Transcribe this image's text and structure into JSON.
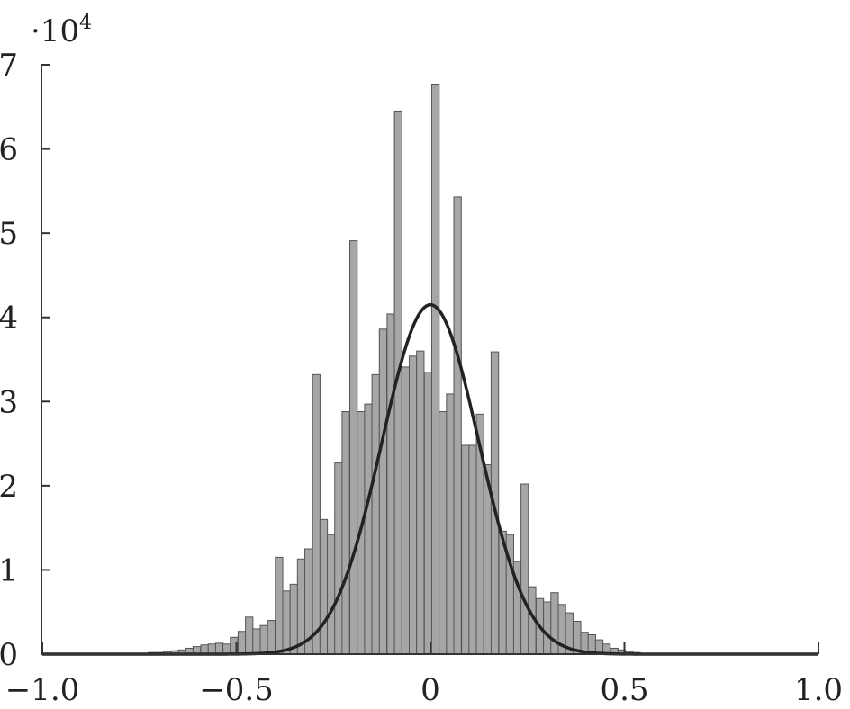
{
  "chart_data": {
    "type": "bar",
    "y_multiplier": {
      "base": "·10",
      "exponent": "4"
    },
    "xlim": [
      -1.0,
      1.0
    ],
    "ylim": [
      0,
      7
    ],
    "x_ticks": [
      {
        "value": -1.0,
        "label": "−1.0"
      },
      {
        "value": -0.5,
        "label": "−0.5"
      },
      {
        "value": 0,
        "label": "0"
      },
      {
        "value": 0.5,
        "label": "0.5"
      },
      {
        "value": 1.0,
        "label": "1.0"
      }
    ],
    "y_ticks": [
      {
        "value": 0,
        "label": "0"
      },
      {
        "value": 1,
        "label": "1"
      },
      {
        "value": 2,
        "label": "2"
      },
      {
        "value": 3,
        "label": "3"
      },
      {
        "value": 4,
        "label": "4"
      },
      {
        "value": 5,
        "label": "5"
      },
      {
        "value": 6,
        "label": "6"
      },
      {
        "value": 7,
        "label": "7"
      }
    ],
    "bin_width": 0.0192,
    "bin_centers": [
      -0.928,
      -0.909,
      -0.89,
      -0.87,
      -0.851,
      -0.832,
      -0.813,
      -0.794,
      -0.774,
      -0.755,
      -0.736,
      -0.717,
      -0.698,
      -0.678,
      -0.659,
      -0.64,
      -0.621,
      -0.602,
      -0.582,
      -0.563,
      -0.544,
      -0.525,
      -0.506,
      -0.486,
      -0.467,
      -0.448,
      -0.429,
      -0.41,
      -0.39,
      -0.371,
      -0.352,
      -0.333,
      -0.314,
      -0.294,
      -0.275,
      -0.256,
      -0.237,
      -0.218,
      -0.198,
      -0.179,
      -0.16,
      -0.141,
      -0.122,
      -0.102,
      -0.083,
      -0.064,
      -0.045,
      -0.026,
      -0.006,
      0.013,
      0.032,
      0.051,
      0.07,
      0.09,
      0.109,
      0.128,
      0.147,
      0.166,
      0.186,
      0.205,
      0.224,
      0.243,
      0.262,
      0.282,
      0.301,
      0.32,
      0.339,
      0.358,
      0.378,
      0.397,
      0.416,
      0.435,
      0.454,
      0.474,
      0.493,
      0.512,
      0.531,
      0.55,
      0.57,
      0.589,
      0.608,
      0.627,
      0.646,
      0.666,
      0.685,
      0.704,
      0.723,
      0.742,
      0.762,
      0.781,
      0.8,
      0.819,
      0.838,
      0.858,
      0.877,
      0.896,
      0.915,
      0.934,
      0.954
    ],
    "bin_counts": [
      0.01,
      0.01,
      0.01,
      0.01,
      0.01,
      0.01,
      0.01,
      0.01,
      0.01,
      0.01,
      0.01,
      0.02,
      0.02,
      0.03,
      0.04,
      0.05,
      0.07,
      0.09,
      0.11,
      0.12,
      0.13,
      0.12,
      0.2,
      0.27,
      0.44,
      0.3,
      0.34,
      0.4,
      1.15,
      0.75,
      0.83,
      1.13,
      1.25,
      3.32,
      1.6,
      1.42,
      2.27,
      2.88,
      4.91,
      2.88,
      2.97,
      3.32,
      3.86,
      4.04,
      6.45,
      3.41,
      3.54,
      3.6,
      3.35,
      6.77,
      2.88,
      3.09,
      5.43,
      2.48,
      2.48,
      2.85,
      2.25,
      3.59,
      1.46,
      1.42,
      1.1,
      2.02,
      0.8,
      0.66,
      0.62,
      0.73,
      0.59,
      0.49,
      0.39,
      0.26,
      0.23,
      0.17,
      0.12,
      0.07,
      0.05,
      0.03,
      0.02,
      0.01,
      0.01,
      0.01,
      0.01,
      0.01,
      0.01,
      0.01,
      0.01,
      0.01,
      0.01,
      0.01,
      0.01,
      0.01,
      0.01,
      0.01,
      0.01,
      0.01,
      0.01,
      0.01,
      0.01,
      0.01,
      0.01
    ],
    "fit_curve": {
      "type": "normal",
      "mean": 0.0,
      "std": 0.125,
      "peak": 4.15
    },
    "colors": {
      "bar_fill": "#a6a6a6",
      "bar_stroke": "#555555",
      "curve": "#222222",
      "axis": "#333333",
      "text": "#222222"
    },
    "grid": false,
    "legend": "none"
  }
}
